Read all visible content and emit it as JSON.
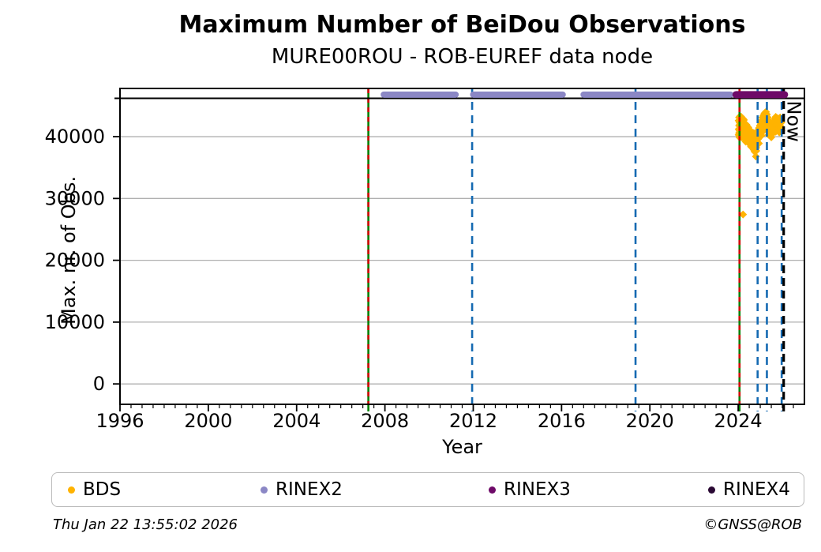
{
  "header": {
    "title": "Maximum Number of BeiDou Observations",
    "subtitle": "MURE00ROU - ROB-EUREF data node"
  },
  "footer": {
    "timestamp": "Thu Jan 22 13:55:02 2026",
    "credit": "©GNSS@ROB"
  },
  "legend": {
    "items": [
      {
        "label": "BDS",
        "color": "#ffb300"
      },
      {
        "label": "RINEX2",
        "color": "#8b87c5"
      },
      {
        "label": "RINEX3",
        "color": "#6e0a68"
      },
      {
        "label": "RINEX4",
        "color": "#2a0934"
      }
    ]
  },
  "chart_data": {
    "type": "scatter",
    "title": "Maximum Number of BeiDou Observations",
    "subtitle": "MURE00ROU - ROB-EUREF data node",
    "xlabel": "Year",
    "ylabel": "Max. nr. of Obs.",
    "xlim": [
      1996,
      2027
    ],
    "ylim": [
      -3300,
      47800
    ],
    "xticks_major": [
      1996,
      2000,
      2004,
      2008,
      2012,
      2016,
      2020,
      2024
    ],
    "xtick_minor_step": 0.5,
    "yticks": [
      0,
      10000,
      20000,
      30000,
      40000
    ],
    "grid": "horizontal-gray",
    "legend_position": "bottom",
    "colors": {
      "bds": "#ffb300",
      "rinex2": "#8b87c5",
      "rinex3": "#6e0a68",
      "rinex4": "#2a0934",
      "blue_line": "#156ab2",
      "green_line": "#008000",
      "red_dash": "#d40000",
      "grid": "#b0b0b0",
      "axis": "#000000"
    },
    "hline": {
      "value": 46200,
      "color": "#000000"
    },
    "top_bands": [
      {
        "name": "RINEX2",
        "color": "#8b87c5",
        "y_value": 46800,
        "thickness": 8,
        "segments": [
          [
            2007.95,
            2011.2
          ],
          [
            2012.0,
            2016.05
          ],
          [
            2017.0,
            2023.65
          ]
        ]
      },
      {
        "name": "RINEX3",
        "color": "#6e0a68",
        "y_value": 46800,
        "thickness": 9,
        "segments": [
          [
            2023.9,
            2026.1
          ]
        ]
      }
    ],
    "vlines": [
      {
        "year": 2007.25,
        "style": "green-solid-red-dashed"
      },
      {
        "year": 2011.95,
        "style": "blue-dashed"
      },
      {
        "year": 2019.35,
        "style": "blue-dashed"
      },
      {
        "year": 2024.06,
        "style": "green-solid-red-dashed"
      },
      {
        "year": 2024.88,
        "style": "blue-dashed"
      },
      {
        "year": 2025.3,
        "style": "blue-dashed"
      },
      {
        "year": 2025.97,
        "style": "blue-dashed"
      },
      {
        "year": 2026.06,
        "style": "black-dashed-now"
      }
    ],
    "now": {
      "year": 2026.06,
      "label": "Now"
    },
    "series": [
      {
        "name": "BDS",
        "color": "#ffb300",
        "marker": "diamond",
        "points": [
          [
            2024.02,
            42600
          ],
          [
            2024.02,
            41200
          ],
          [
            2024.02,
            40300
          ],
          [
            2024.04,
            43100
          ],
          [
            2024.04,
            41800
          ],
          [
            2024.04,
            40600
          ],
          [
            2024.06,
            42300
          ],
          [
            2024.06,
            41000
          ],
          [
            2024.06,
            39900
          ],
          [
            2024.08,
            43300
          ],
          [
            2024.08,
            42000
          ],
          [
            2024.08,
            40800
          ],
          [
            2024.1,
            42800
          ],
          [
            2024.1,
            41300
          ],
          [
            2024.1,
            40100
          ],
          [
            2024.12,
            42200
          ],
          [
            2024.12,
            41500
          ],
          [
            2024.12,
            40500
          ],
          [
            2024.14,
            43200
          ],
          [
            2024.14,
            41900
          ],
          [
            2024.14,
            40300
          ],
          [
            2024.16,
            42500
          ],
          [
            2024.16,
            41100
          ],
          [
            2024.16,
            39900
          ],
          [
            2024.18,
            43000
          ],
          [
            2024.18,
            41600
          ],
          [
            2024.18,
            40400
          ],
          [
            2024.2,
            42400
          ],
          [
            2024.2,
            41000
          ],
          [
            2024.2,
            40000
          ],
          [
            2024.22,
            42900
          ],
          [
            2024.22,
            41700
          ],
          [
            2024.22,
            40600
          ],
          [
            2024.24,
            42100
          ],
          [
            2024.24,
            40900
          ],
          [
            2024.24,
            39800
          ],
          [
            2024.26,
            42700
          ],
          [
            2024.26,
            41400
          ],
          [
            2024.26,
            40200
          ],
          [
            2024.28,
            42000
          ],
          [
            2024.28,
            40700
          ],
          [
            2024.28,
            39700
          ],
          [
            2024.3,
            41800
          ],
          [
            2024.3,
            40400
          ],
          [
            2024.34,
            41500
          ],
          [
            2024.34,
            40100
          ],
          [
            2024.34,
            39200
          ],
          [
            2024.38,
            41900
          ],
          [
            2024.38,
            40600
          ],
          [
            2024.42,
            41200
          ],
          [
            2024.42,
            39800
          ],
          [
            2024.46,
            41500
          ],
          [
            2024.46,
            40000
          ],
          [
            2024.46,
            39000
          ],
          [
            2024.5,
            41000
          ],
          [
            2024.5,
            39600
          ],
          [
            2024.54,
            40700
          ],
          [
            2024.54,
            39100
          ],
          [
            2024.58,
            40900
          ],
          [
            2024.58,
            39400
          ],
          [
            2024.58,
            38400
          ],
          [
            2024.62,
            40400
          ],
          [
            2024.62,
            38900
          ],
          [
            2024.66,
            40100
          ],
          [
            2024.66,
            38500
          ],
          [
            2024.7,
            40600
          ],
          [
            2024.7,
            39000
          ],
          [
            2024.7,
            37900
          ],
          [
            2024.74,
            39900
          ],
          [
            2024.74,
            38300
          ],
          [
            2024.74,
            37600
          ],
          [
            2024.78,
            40300
          ],
          [
            2024.78,
            38800
          ],
          [
            2024.8,
            36800
          ],
          [
            2024.82,
            39800
          ],
          [
            2024.82,
            38200
          ],
          [
            2024.82,
            37700
          ],
          [
            2024.86,
            40500
          ],
          [
            2024.86,
            39200
          ],
          [
            2024.9,
            41000
          ],
          [
            2024.9,
            39600
          ],
          [
            2024.94,
            41400
          ],
          [
            2024.94,
            40100
          ],
          [
            2024.94,
            38900
          ],
          [
            2024.98,
            41800
          ],
          [
            2024.98,
            40500
          ],
          [
            2025.02,
            42200
          ],
          [
            2025.02,
            40900
          ],
          [
            2025.06,
            42600
          ],
          [
            2025.06,
            41300
          ],
          [
            2025.06,
            40200
          ],
          [
            2025.1,
            43100
          ],
          [
            2025.1,
            41800
          ],
          [
            2025.14,
            43400
          ],
          [
            2025.14,
            42000
          ],
          [
            2025.14,
            40900
          ],
          [
            2025.18,
            43700
          ],
          [
            2025.18,
            42300
          ],
          [
            2025.22,
            43900
          ],
          [
            2025.22,
            42500
          ],
          [
            2025.22,
            41300
          ],
          [
            2025.26,
            44000
          ],
          [
            2025.26,
            42700
          ],
          [
            2025.3,
            43600
          ],
          [
            2025.3,
            42200
          ],
          [
            2025.3,
            41100
          ],
          [
            2025.34,
            43100
          ],
          [
            2025.34,
            41700
          ],
          [
            2025.38,
            42600
          ],
          [
            2025.38,
            41200
          ],
          [
            2025.38,
            40300
          ],
          [
            2025.42,
            42200
          ],
          [
            2025.42,
            40800
          ],
          [
            2025.46,
            41800
          ],
          [
            2025.46,
            40500
          ],
          [
            2025.5,
            42000
          ],
          [
            2025.5,
            40700
          ],
          [
            2025.5,
            39900
          ],
          [
            2025.54,
            41700
          ],
          [
            2025.54,
            40400
          ],
          [
            2025.58,
            42100
          ],
          [
            2025.58,
            40900
          ],
          [
            2025.62,
            42500
          ],
          [
            2025.62,
            41200
          ],
          [
            2025.66,
            42900
          ],
          [
            2025.66,
            41500
          ],
          [
            2025.7,
            43200
          ],
          [
            2025.7,
            41900
          ],
          [
            2025.7,
            40800
          ],
          [
            2025.74,
            42800
          ],
          [
            2025.74,
            41500
          ],
          [
            2025.78,
            43000
          ],
          [
            2025.78,
            41700
          ],
          [
            2025.82,
            42600
          ],
          [
            2025.82,
            41300
          ],
          [
            2025.86,
            42900
          ],
          [
            2025.86,
            41600
          ],
          [
            2025.86,
            40700
          ],
          [
            2025.9,
            43100
          ],
          [
            2025.9,
            41800
          ],
          [
            2025.94,
            42700
          ],
          [
            2025.94,
            41400
          ],
          [
            2025.96,
            42300
          ],
          [
            2025.96,
            41000
          ],
          [
            2024.22,
            27400
          ]
        ]
      },
      {
        "name": "RINEX2",
        "color": "#8b87c5",
        "marker": "circle-band",
        "points": []
      },
      {
        "name": "RINEX3",
        "color": "#6e0a68",
        "marker": "circle-band",
        "points": []
      },
      {
        "name": "RINEX4",
        "color": "#2a0934",
        "marker": "circle",
        "points": []
      }
    ]
  }
}
